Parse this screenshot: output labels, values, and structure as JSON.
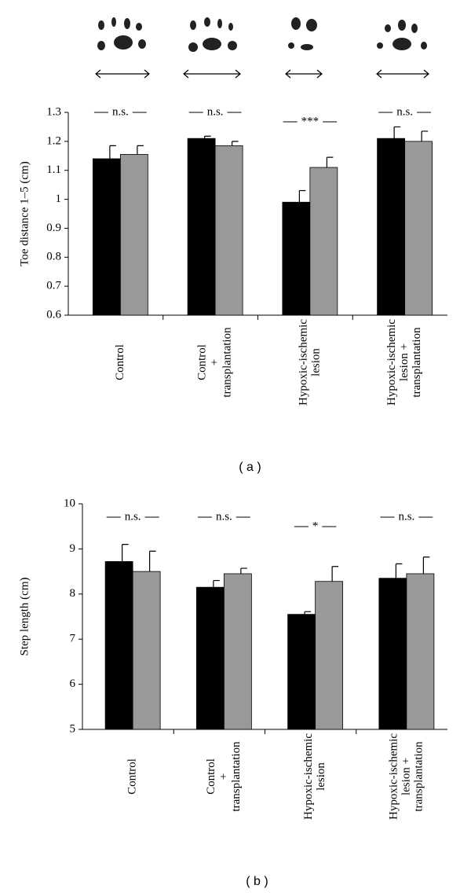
{
  "chart_data": [
    {
      "type": "bar",
      "label": "( a )",
      "ylabel": "Toe distance 1–5 (cm)",
      "categories": [
        [
          "Control"
        ],
        [
          "Control",
          "+",
          "transplantation"
        ],
        [
          "Hypoxic-ischemic",
          "lesion"
        ],
        [
          "Hypoxic-ischemic",
          "lesion +",
          "transplantation"
        ]
      ],
      "series": [
        {
          "color": "#000000",
          "values": [
            1.14,
            1.21,
            0.99,
            1.21
          ],
          "errors": [
            0.045,
            0.008,
            0.04,
            0.04
          ]
        },
        {
          "color": "#999999",
          "values": [
            1.155,
            1.185,
            1.11,
            1.2
          ],
          "errors": [
            0.03,
            0.015,
            0.035,
            0.035
          ]
        }
      ],
      "annotations": [
        "n.s.",
        "n.s.",
        "***",
        "n.s."
      ],
      "ylim": [
        0.6,
        1.3
      ],
      "yticks": [
        0.6,
        0.7,
        0.8,
        0.9,
        1,
        1.1,
        1.2,
        1.3
      ]
    },
    {
      "type": "bar",
      "label": "( b )",
      "ylabel": "Step length (cm)",
      "categories": [
        [
          "Control"
        ],
        [
          "Control",
          "+",
          "transplantation"
        ],
        [
          "Hypoxic-ischemic",
          "lesion"
        ],
        [
          "Hypoxic-ischemic",
          "lesion +",
          "transplantation"
        ]
      ],
      "series": [
        {
          "color": "#000000",
          "values": [
            8.72,
            8.15,
            7.55,
            8.35
          ],
          "errors": [
            0.38,
            0.15,
            0.06,
            0.32
          ]
        },
        {
          "color": "#999999",
          "values": [
            8.5,
            8.45,
            8.28,
            8.45
          ],
          "errors": [
            0.45,
            0.12,
            0.33,
            0.37
          ]
        }
      ],
      "annotations": [
        "n.s.",
        "n.s.",
        "*",
        "n.s."
      ],
      "ylim": [
        5,
        10
      ],
      "yticks": [
        5,
        6,
        7,
        8,
        9,
        10
      ]
    }
  ]
}
